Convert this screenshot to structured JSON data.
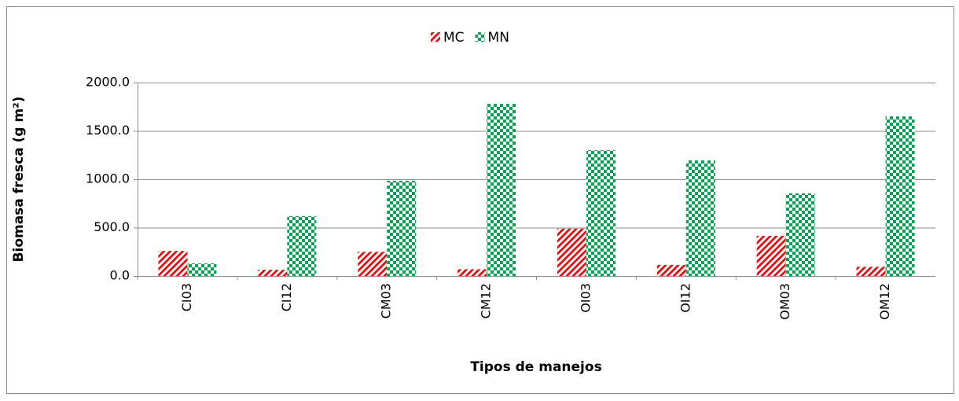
{
  "chart_data": {
    "type": "bar",
    "y_label": "Biomasa fresca (g m²)",
    "x_label": "Tipos de manejos",
    "categories": [
      "CI03",
      "CI12",
      "CM03",
      "CM12",
      "OI03",
      "OI12",
      "OM03",
      "OM12"
    ],
    "series": [
      {
        "name": "MC",
        "color": "#ff0000",
        "pattern": "diagonal",
        "values": [
          260,
          65,
          250,
          70,
          490,
          115,
          415,
          95
        ]
      },
      {
        "name": "MN",
        "color": "#00a550",
        "pattern": "checker",
        "values": [
          130,
          620,
          985,
          1780,
          1300,
          1195,
          855,
          1650
        ]
      }
    ],
    "ylim": [
      0,
      2000
    ],
    "yticks": [
      {
        "value": 0,
        "label": "0.0"
      },
      {
        "value": 500,
        "label": "500.0"
      },
      {
        "value": 1000,
        "label": "1000.0"
      },
      {
        "value": 1500,
        "label": "1500.0"
      },
      {
        "value": 2000,
        "label": "2000.0"
      }
    ],
    "grid": true,
    "legend": "top"
  }
}
